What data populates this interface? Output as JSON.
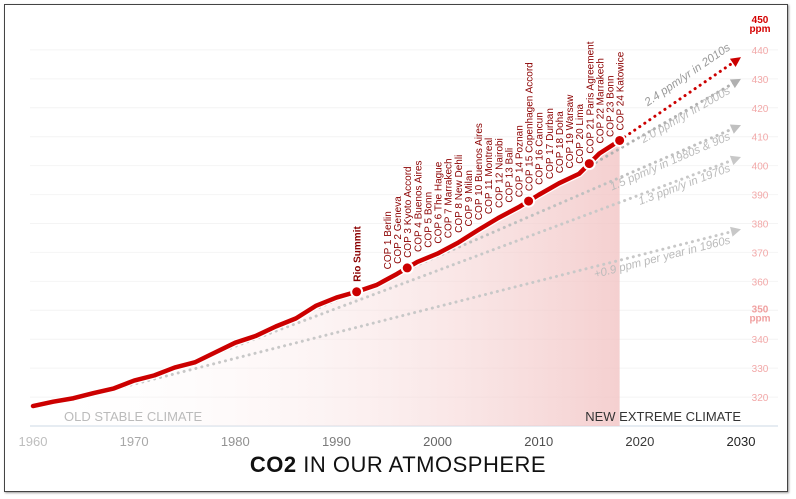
{
  "chart_data": {
    "type": "line",
    "title_bold": "CO2",
    "title_rest": " IN OUR ATMOSPHERE",
    "xlim": [
      1960,
      2030
    ],
    "ylim": [
      310,
      450
    ],
    "x_ticks": [
      1960,
      1970,
      1980,
      1990,
      2000,
      2010,
      2020,
      2030
    ],
    "y_ticks": [
      320,
      330,
      340,
      350,
      360,
      370,
      380,
      390,
      400,
      410,
      420,
      430,
      440,
      450
    ],
    "y_unit": "ppm",
    "grid": true,
    "series": [
      {
        "x": [
          1960,
          1962,
          1964,
          1966,
          1968,
          1970,
          1972,
          1974,
          1976,
          1978,
          1980,
          1982,
          1984,
          1986,
          1988,
          1990,
          1992,
          1994,
          1996,
          1998,
          2000,
          2002,
          2004,
          2006,
          2008,
          2010,
          2012,
          2014,
          2016,
          2018
        ],
        "y": [
          316.9,
          318.4,
          319.6,
          321.4,
          323.0,
          325.7,
          327.5,
          330.2,
          332.0,
          335.4,
          338.8,
          341.1,
          344.4,
          347.2,
          351.6,
          354.4,
          356.4,
          358.8,
          362.6,
          366.7,
          369.6,
          373.3,
          377.7,
          381.9,
          385.6,
          389.9,
          393.9,
          397.2,
          404.2,
          408.7
        ],
        "color": "#cc0000"
      }
    ],
    "events": [
      {
        "label": "Rio Summit",
        "year": 1992,
        "marker": true
      },
      {
        "label": "COP 1 Berlin",
        "year": 1995
      },
      {
        "label": "COP 2 Geneva",
        "year": 1996
      },
      {
        "label": "COP 3 Kyoto Accord",
        "year": 1997,
        "marker": true
      },
      {
        "label": "COP 4 Buenos Aires",
        "year": 1998
      },
      {
        "label": "COP 5 Bonn",
        "year": 1999
      },
      {
        "label": "COP 6 The Hague",
        "year": 2000
      },
      {
        "label": "COP 7 Marrakech",
        "year": 2001
      },
      {
        "label": "COP 8 New Dehli",
        "year": 2002
      },
      {
        "label": "COP 9 Milan",
        "year": 2003
      },
      {
        "label": "COP 10 Buenos Aires",
        "year": 2004
      },
      {
        "label": "COP 11 Montreal",
        "year": 2005
      },
      {
        "label": "COP 12 Nairobi",
        "year": 2006
      },
      {
        "label": "COP 13 Bali",
        "year": 2007
      },
      {
        "label": "COP 14 Poznan",
        "year": 2008
      },
      {
        "label": "COP 15 Copenhagen Accord",
        "year": 2009,
        "marker": true
      },
      {
        "label": "COP 16 Cancun",
        "year": 2010
      },
      {
        "label": "COP 17 Durban",
        "year": 2011
      },
      {
        "label": "COP 18 Doha",
        "year": 2012
      },
      {
        "label": "COP 19 Warsaw",
        "year": 2013
      },
      {
        "label": "COP 20 Lima",
        "year": 2014
      },
      {
        "label": "COP 21 Paris Agreement",
        "year": 2015,
        "marker": true
      },
      {
        "label": "COP 22 Marrakech",
        "year": 2016
      },
      {
        "label": "COP 23 Bonn",
        "year": 2017
      },
      {
        "label": "COP 24 Katowice",
        "year": 2018,
        "marker": true
      }
    ],
    "trends": [
      {
        "label": "+0.9 ppm per year in 1960s",
        "from": [
          1965,
          320
        ],
        "to": [
          2030,
          378
        ],
        "color": "#c8c8c8"
      },
      {
        "label": "1.3 ppm/y in 1970s",
        "from": [
          1975,
          331
        ],
        "to": [
          2030,
          403
        ],
        "color": "#c8c8c8"
      },
      {
        "label": "1.5 ppm/y in 1980s & 90s",
        "from": [
          1985,
          346
        ],
        "to": [
          2030,
          414
        ],
        "color": "#c0c0c0"
      },
      {
        "label": "2.0 ppm/yr in 2000s",
        "from": [
          2000,
          369.6
        ],
        "to": [
          2030,
          430
        ],
        "color": "#b0b0b0"
      },
      {
        "label": "2.4 ppm/yr in 2010s",
        "from": [
          2018,
          408.7
        ],
        "to": [
          2030,
          437.5
        ],
        "color": "#cc0000"
      }
    ],
    "annotations": {
      "left": "OLD STABLE CLIMATE",
      "right": "NEW EXTREME CLIMATE"
    }
  }
}
